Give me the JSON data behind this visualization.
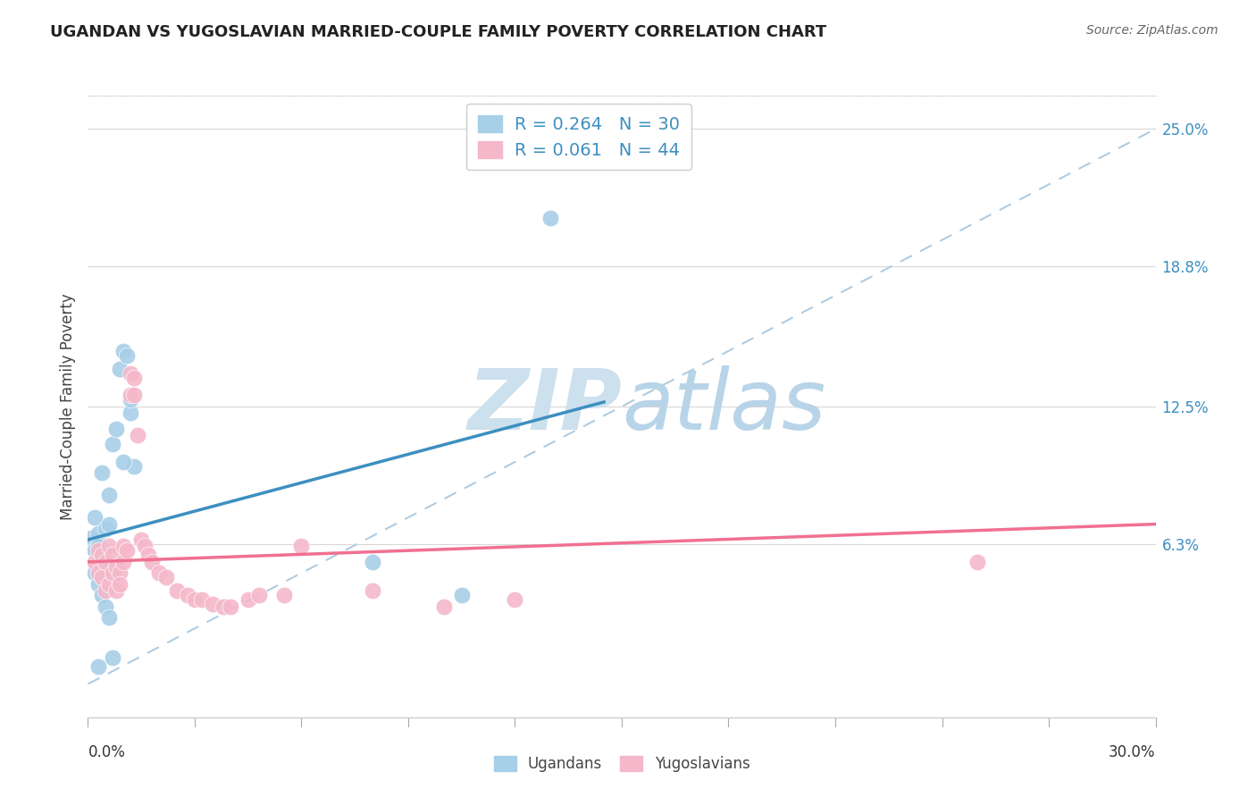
{
  "title": "UGANDAN VS YUGOSLAVIAN MARRIED-COUPLE FAMILY POVERTY CORRELATION CHART",
  "source": "Source: ZipAtlas.com",
  "ylabel": "Married-Couple Family Poverty",
  "right_yticks": [
    0.063,
    0.125,
    0.188,
    0.25
  ],
  "right_yticklabels": [
    "6.3%",
    "12.5%",
    "18.8%",
    "25.0%"
  ],
  "xmin": 0.0,
  "xmax": 0.3,
  "ymin": -0.015,
  "ymax": 0.265,
  "ugandan_R": 0.264,
  "ugandan_N": 30,
  "yugoslavian_R": 0.061,
  "yugoslavian_N": 44,
  "ugandan_color": "#a8cfe8",
  "yugoslavian_color": "#f4b8ca",
  "ugandan_line_color": "#3d8fc0",
  "yugoslavian_line_color": "#f07090",
  "dashed_line_color": "#b0cce0",
  "watermark_zip": "ZIP",
  "watermark_atlas": "atlas",
  "watermark_color_zip": "#cce0ee",
  "watermark_color_atlas": "#b8d4e8",
  "legend_text_color": "#3d8fc0",
  "grid_color": "#d8d8d8",
  "background_color": "#ffffff",
  "ugandan_x": [
    0.001,
    0.002,
    0.002,
    0.003,
    0.003,
    0.004,
    0.004,
    0.005,
    0.005,
    0.006,
    0.006,
    0.007,
    0.008,
    0.009,
    0.01,
    0.011,
    0.012,
    0.013,
    0.002,
    0.003,
    0.004,
    0.005,
    0.006,
    0.007,
    0.01,
    0.012,
    0.08,
    0.105,
    0.003,
    0.13
  ],
  "ugandan_y": [
    0.066,
    0.06,
    0.075,
    0.068,
    0.062,
    0.058,
    0.095,
    0.07,
    0.055,
    0.072,
    0.085,
    0.108,
    0.115,
    0.142,
    0.15,
    0.148,
    0.122,
    0.098,
    0.05,
    0.045,
    0.04,
    0.035,
    0.03,
    0.012,
    0.1,
    0.128,
    0.055,
    0.04,
    0.008,
    0.21
  ],
  "yugoslavian_x": [
    0.002,
    0.003,
    0.003,
    0.004,
    0.004,
    0.005,
    0.005,
    0.006,
    0.006,
    0.007,
    0.007,
    0.008,
    0.008,
    0.009,
    0.009,
    0.01,
    0.01,
    0.011,
    0.012,
    0.012,
    0.013,
    0.013,
    0.014,
    0.015,
    0.016,
    0.017,
    0.018,
    0.02,
    0.022,
    0.025,
    0.028,
    0.03,
    0.032,
    0.035,
    0.038,
    0.04,
    0.045,
    0.048,
    0.055,
    0.06,
    0.08,
    0.1,
    0.12,
    0.25
  ],
  "yugoslavian_y": [
    0.055,
    0.05,
    0.06,
    0.048,
    0.058,
    0.042,
    0.055,
    0.045,
    0.062,
    0.05,
    0.058,
    0.053,
    0.042,
    0.05,
    0.045,
    0.055,
    0.062,
    0.06,
    0.13,
    0.14,
    0.138,
    0.13,
    0.112,
    0.065,
    0.062,
    0.058,
    0.055,
    0.05,
    0.048,
    0.042,
    0.04,
    0.038,
    0.038,
    0.036,
    0.035,
    0.035,
    0.038,
    0.04,
    0.04,
    0.062,
    0.042,
    0.035,
    0.038,
    0.055
  ],
  "ug_line_x0": 0.0,
  "ug_line_x1": 0.145,
  "ug_line_y0": 0.065,
  "ug_line_y1": 0.127,
  "yu_line_x0": 0.0,
  "yu_line_x1": 0.3,
  "yu_line_y0": 0.055,
  "yu_line_y1": 0.072
}
